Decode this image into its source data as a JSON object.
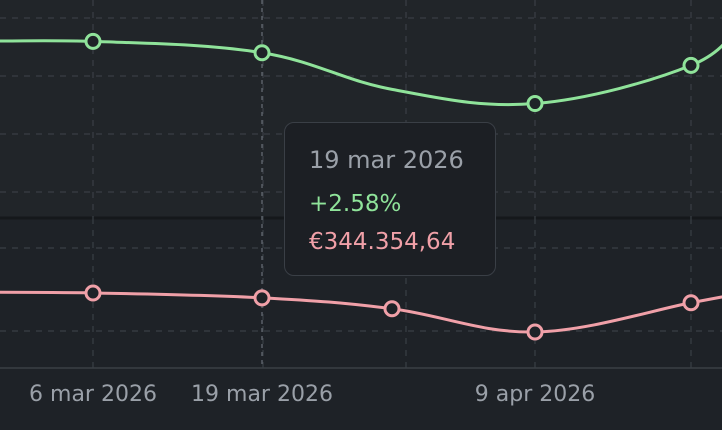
{
  "colors": {
    "background": "#1e2227",
    "panel_top": "#212529",
    "grid": "#3a3f45",
    "crosshair": "#5a6068",
    "green": "#8fe39a",
    "pink": "#f0a0a8",
    "tick_text": "#9aa0a8"
  },
  "chart_data": [
    {
      "type": "line",
      "series": [
        {
          "x": [
            "2026-02-23",
            "2026-03-06",
            "2026-03-19",
            "2026-03-29",
            "2026-04-09",
            "2026-04-21",
            "2026-04-25"
          ],
          "values": [
            3.08,
            3.1,
            2.58,
            0.9,
            0.25,
            2.0,
            4.1
          ]
        }
      ],
      "marker_x": [
        "2026-03-06",
        "2026-03-19",
        "2026-04-09",
        "2026-04-21"
      ],
      "ylim": [
        -5,
        5
      ],
      "grid": true
    },
    {
      "type": "line",
      "series": [
        {
          "x": [
            "2026-02-23",
            "2026-03-06",
            "2026-03-19",
            "2026-03-29",
            "2026-04-09",
            "2026-04-21",
            "2026-04-25"
          ],
          "values": [
            345100,
            345000,
            344354.64,
            342900,
            339800,
            343700,
            345000
          ]
        }
      ],
      "marker_x": [
        "2026-03-06",
        "2026-03-19",
        "2026-03-29",
        "2026-04-09",
        "2026-04-21"
      ],
      "ylim": [
        335000,
        355000
      ],
      "grid": true
    }
  ],
  "x_axis": {
    "ticks": [
      {
        "date": "2026-03-06",
        "label": "6 mar 2026"
      },
      {
        "date": "2026-03-19",
        "label": "19 mar 2026"
      },
      {
        "date": "2026-04-09",
        "label": "9 apr 2026"
      }
    ]
  },
  "tooltip": {
    "date": "19 mar 2026",
    "change": "+2.58%",
    "value": "€344.354,64"
  },
  "hover_date": "2026-03-19"
}
